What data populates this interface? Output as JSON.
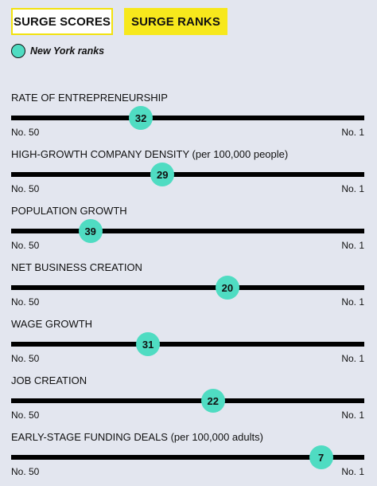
{
  "tabs": {
    "scores_label": "SURGE SCORES",
    "ranks_label": "SURGE RANKS"
  },
  "legend": {
    "label": "New York ranks"
  },
  "scale": {
    "low_label": "No. 50",
    "high_label": "No. 1",
    "worst_rank": 50,
    "best_rank": 1
  },
  "colors": {
    "marker": "#4fdcc2",
    "active_tab": "#f7e81c",
    "track": "#000000",
    "background": "#e3e6ef"
  },
  "metrics": [
    {
      "label": "RATE OF ENTREPRENEURSHIP",
      "rank": 32
    },
    {
      "label": "HIGH-GROWTH COMPANY DENSITY (per 100,000 people)",
      "rank": 29
    },
    {
      "label": "POPULATION GROWTH",
      "rank": 39
    },
    {
      "label": "NET BUSINESS CREATION",
      "rank": 20
    },
    {
      "label": "WAGE GROWTH",
      "rank": 31
    },
    {
      "label": "JOB CREATION",
      "rank": 22
    },
    {
      "label": "EARLY-STAGE FUNDING DEALS (per 100,000 adults)",
      "rank": 7
    }
  ]
}
